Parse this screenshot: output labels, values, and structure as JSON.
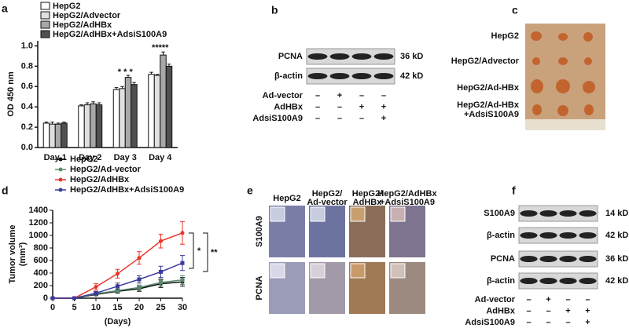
{
  "chart_data": [
    {
      "type": "bar",
      "ylabel": "OD 450 nm",
      "categories": [
        "Day 1",
        "Day 2",
        "Day 3",
        "Day 4"
      ],
      "series": [
        {
          "name": "HepG2",
          "color": "#ffffff",
          "values": [
            0.24,
            0.41,
            0.57,
            0.72
          ],
          "errors": [
            0.01,
            0.01,
            0.02,
            0.02
          ]
        },
        {
          "name": "HepG2/Advector",
          "color": "#e0e0e0",
          "values": [
            0.23,
            0.42,
            0.58,
            0.71
          ],
          "errors": [
            0.02,
            0.02,
            0.02,
            0.01
          ]
        },
        {
          "name": "HepG2/AdHBx",
          "color": "#a8a8a8",
          "values": [
            0.23,
            0.43,
            0.69,
            0.91
          ],
          "errors": [
            0.01,
            0.02,
            0.02,
            0.03
          ]
        },
        {
          "name": "HepG2/AdHBx+AdsiS100A9",
          "color": "#505050",
          "values": [
            0.24,
            0.42,
            0.62,
            0.8
          ],
          "errors": [
            0.01,
            0.02,
            0.02,
            0.02
          ]
        }
      ],
      "ylim": [
        0,
        1.05
      ],
      "yticks": [
        {
          "value": 0,
          "label": "0.0"
        },
        0.2,
        0.4,
        0.6,
        0.8,
        {
          "value": 1,
          "label": "1.0"
        }
      ],
      "annotations": [
        "* * *",
        "*****"
      ]
    },
    {
      "type": "line",
      "ylabel": [
        "Tumor volume",
        "(mm³)"
      ],
      "xlabel": "(Days)",
      "x": [
        0,
        5,
        10,
        15,
        20,
        25,
        30
      ],
      "series": [
        {
          "name": "HepG2",
          "color": "#111111",
          "values": [
            0,
            0,
            60,
            110,
            150,
            230,
            260
          ],
          "errors": [
            0,
            0,
            20,
            30,
            40,
            60,
            70
          ]
        },
        {
          "name": "HepG2/Ad-vector",
          "color": "#5b8a6e",
          "values": [
            0,
            0,
            70,
            120,
            170,
            250,
            290
          ],
          "errors": [
            0,
            0,
            20,
            30,
            40,
            60,
            70
          ]
        },
        {
          "name": "HepG2/AdHBx",
          "color": "#e8352a",
          "values": [
            0,
            0,
            180,
            390,
            640,
            910,
            1040
          ],
          "errors": [
            0,
            0,
            50,
            70,
            100,
            110,
            180
          ]
        },
        {
          "name": "HepG2/AdHBx+AdsiS100A9",
          "color": "#3a3a9c",
          "values": [
            0,
            0,
            80,
            190,
            300,
            420,
            560
          ],
          "errors": [
            0,
            0,
            30,
            50,
            60,
            90,
            120
          ]
        }
      ],
      "xlim": [
        0,
        30
      ],
      "xticks": [
        0,
        5,
        10,
        15,
        20,
        25,
        30
      ],
      "ylim": [
        0,
        1400
      ],
      "yticks": [
        0,
        200,
        400,
        600,
        800,
        1000,
        1200,
        1400
      ],
      "annotations": [
        "*",
        "**"
      ]
    }
  ],
  "panel_labels": [
    "a",
    "b",
    "c",
    "d",
    "e",
    "f"
  ],
  "blot_b": {
    "bands": [
      {
        "label": "PCNA",
        "size": "36 kD"
      },
      {
        "label": "β-actin",
        "size": "42 kD"
      }
    ],
    "conditions": [
      {
        "label": "Ad-vector",
        "signs": [
          "–",
          "+",
          "–",
          "–"
        ]
      },
      {
        "label": "AdHBx",
        "signs": [
          "–",
          "–",
          "+",
          "+"
        ]
      },
      {
        "label": "AdsiS100A9",
        "signs": [
          "–",
          "–",
          "–",
          "+"
        ]
      }
    ]
  },
  "photo_c": {
    "labels": [
      "HepG2",
      "HepG2/Advector",
      "HepG2/Ad-HBx",
      [
        "HepG2/Ad-HBx",
        "+AdsiS100A9"
      ]
    ]
  },
  "ihc_e": {
    "columns": [
      [
        "HepG2"
      ],
      [
        "HepG2/",
        "Ad-vector"
      ],
      [
        "HepG2/",
        "AdHBx"
      ],
      [
        "HepG2/AdHBx",
        "+AdsiS100A9"
      ]
    ],
    "rows": [
      "S100A9",
      "PCNA"
    ]
  },
  "blot_f": {
    "bands": [
      {
        "label": "S100A9",
        "size": "14 kD"
      },
      {
        "label": "β-actin",
        "size": "42 kD"
      },
      {
        "label": "PCNA",
        "size": "36 kD"
      },
      {
        "label": "β-actin",
        "size": "42 kD"
      }
    ],
    "conditions": [
      {
        "label": "Ad-vector",
        "signs": [
          "–",
          "+",
          "–",
          "–"
        ]
      },
      {
        "label": "AdHBx",
        "signs": [
          "–",
          "–",
          "+",
          "+"
        ]
      },
      {
        "label": "AdsiS100A9",
        "signs": [
          "–",
          "–",
          "–",
          "+"
        ]
      }
    ]
  }
}
